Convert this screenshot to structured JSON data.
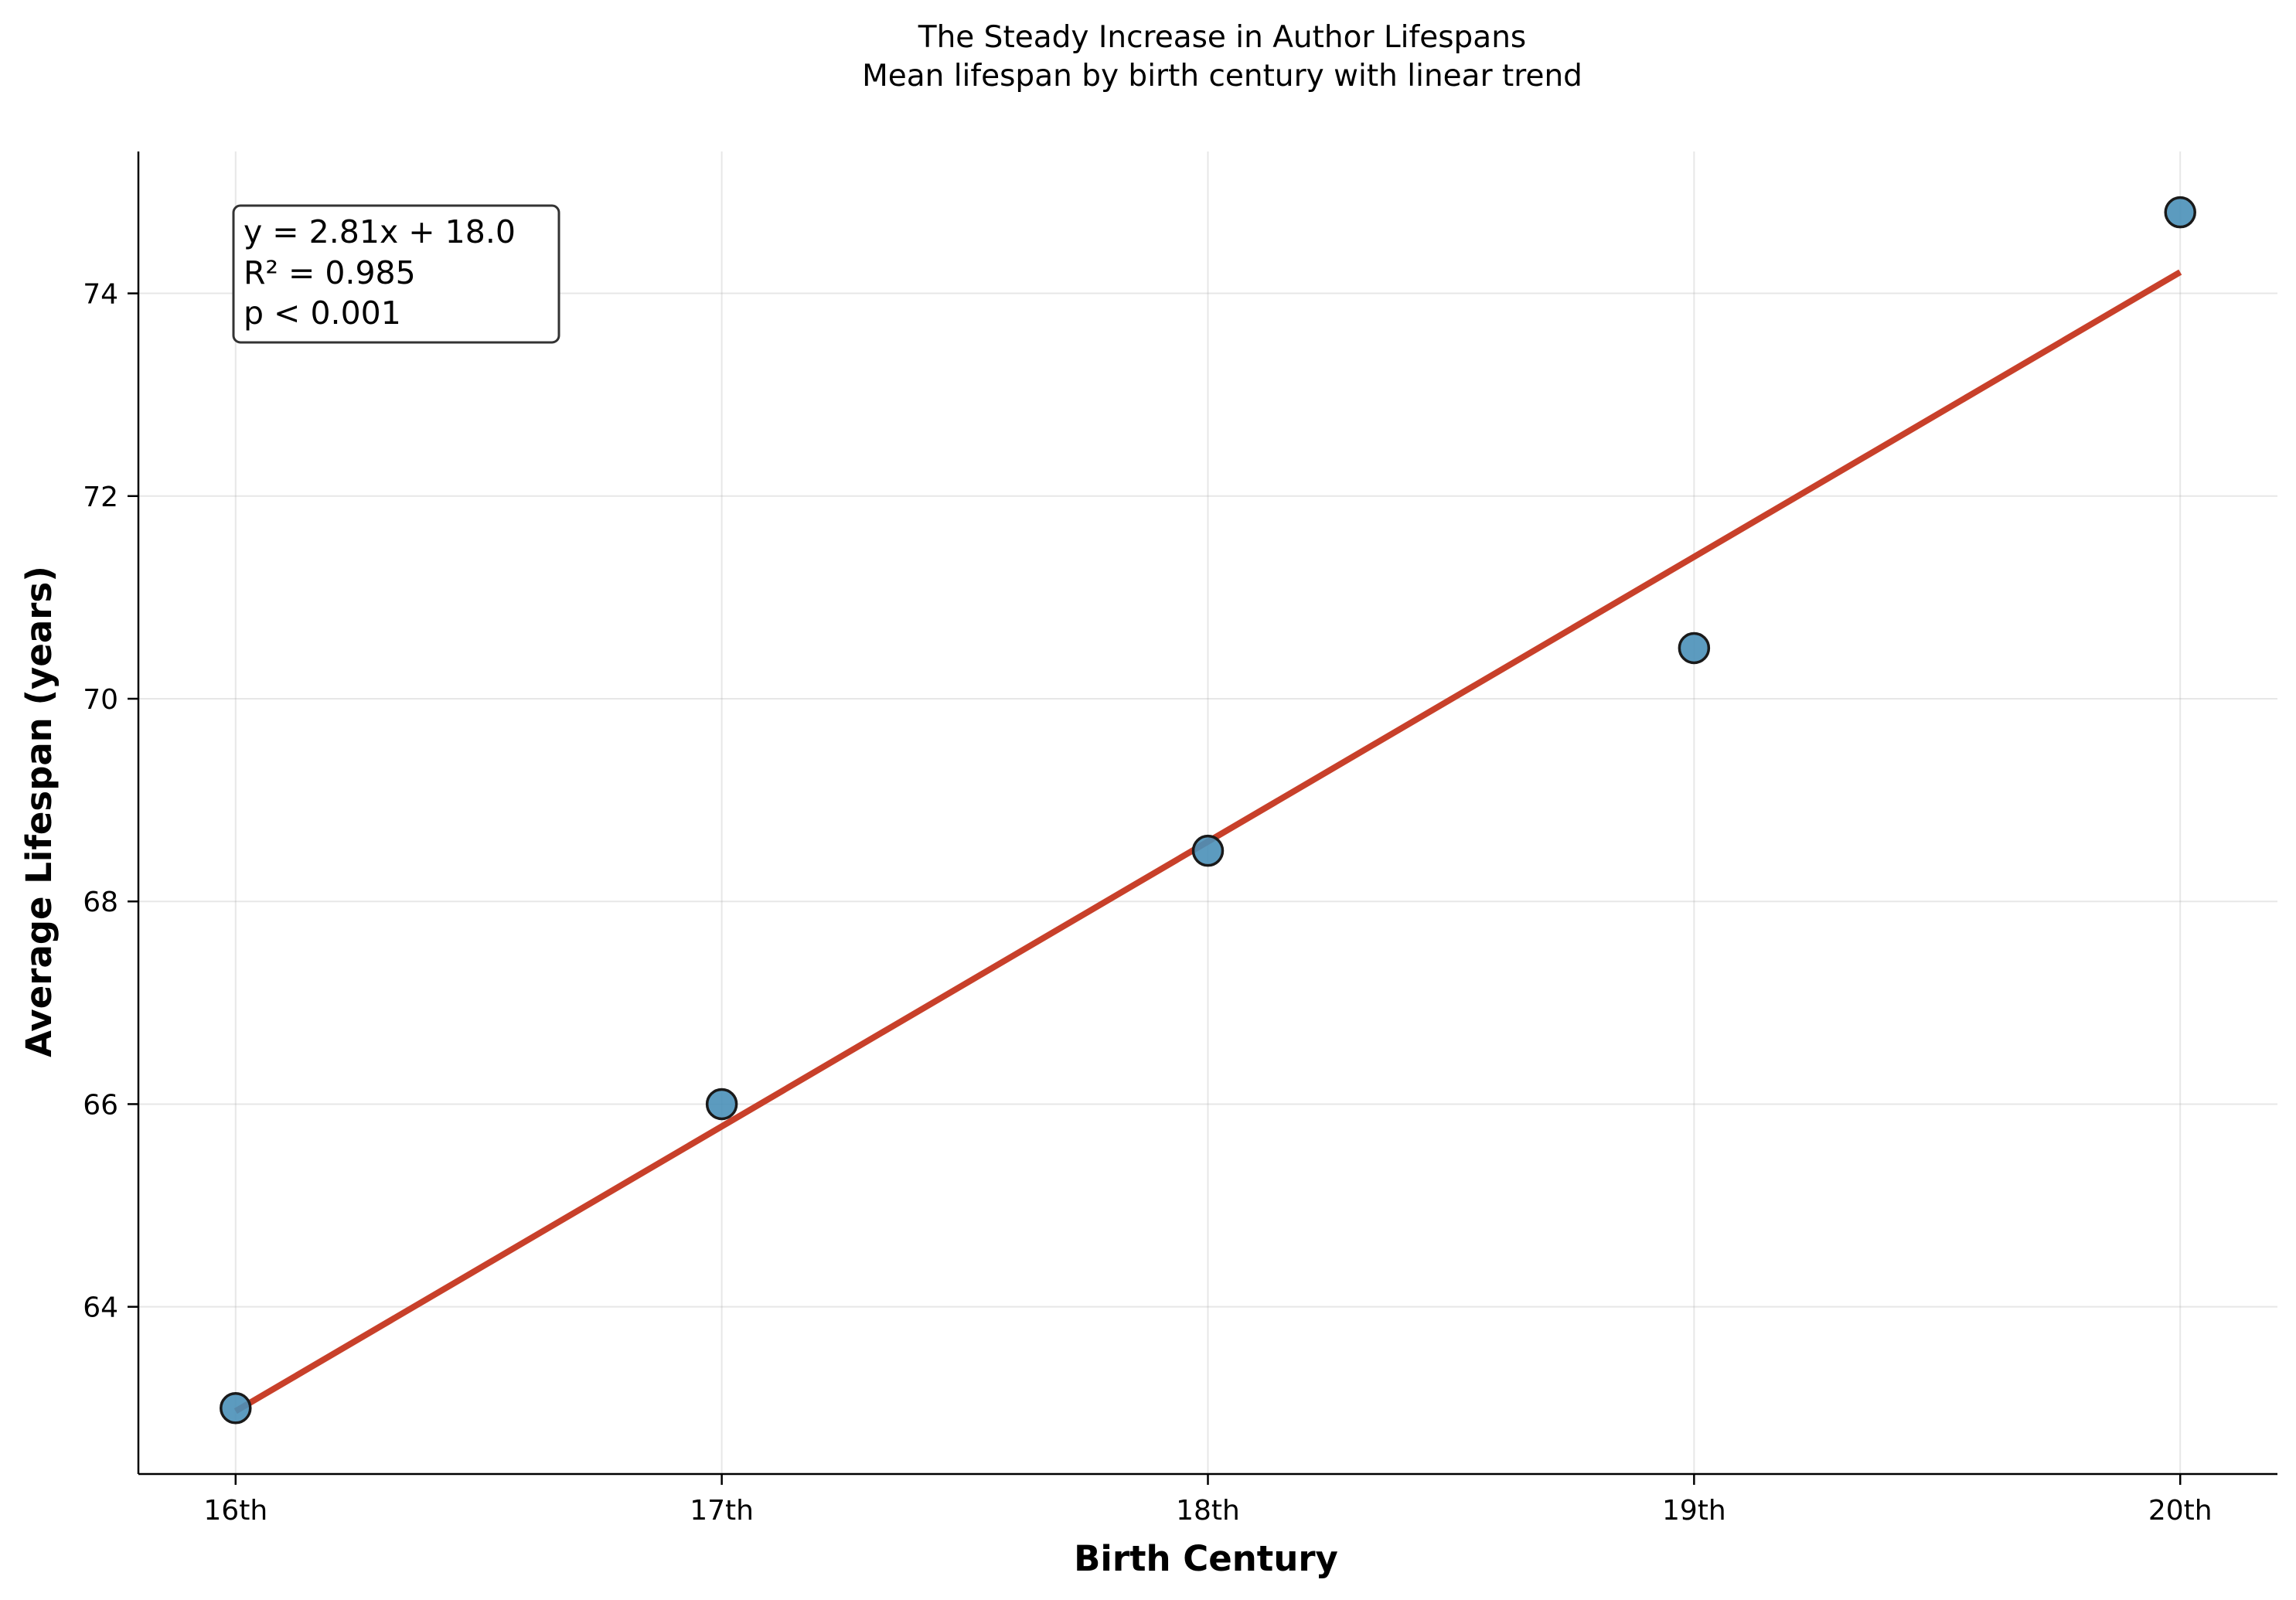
{
  "chart_data": {
    "type": "scatter",
    "title": "The Steady Increase in Author Lifespans",
    "subtitle": "Mean lifespan by birth century with linear trend",
    "xlabel": "Birth Century",
    "ylabel": "Average Lifespan (years)",
    "categories": [
      "16th",
      "17th",
      "18th",
      "19th",
      "20th"
    ],
    "x": [
      16,
      17,
      18,
      19,
      20
    ],
    "y": [
      63.0,
      66.0,
      68.5,
      70.5,
      74.8
    ],
    "xlim": [
      15.8,
      20.2
    ],
    "ylim": [
      62.35,
      75.4
    ],
    "yticks": [
      64,
      66,
      68,
      70,
      72,
      74
    ],
    "grid": true,
    "trend": {
      "slope": 2.81,
      "intercept": 18.0,
      "x_start": 16,
      "x_end": 20,
      "y_start": 62.97,
      "y_end": 74.21
    },
    "annotation": {
      "lines": [
        "y = 2.81x + 18.0",
        "R² = 0.985",
        "p < 0.001"
      ]
    },
    "colors": {
      "points": "#4a90b8",
      "point_edge": "#1a1a1a",
      "trend": "#c8402a",
      "annotation_border": "#333333"
    }
  }
}
